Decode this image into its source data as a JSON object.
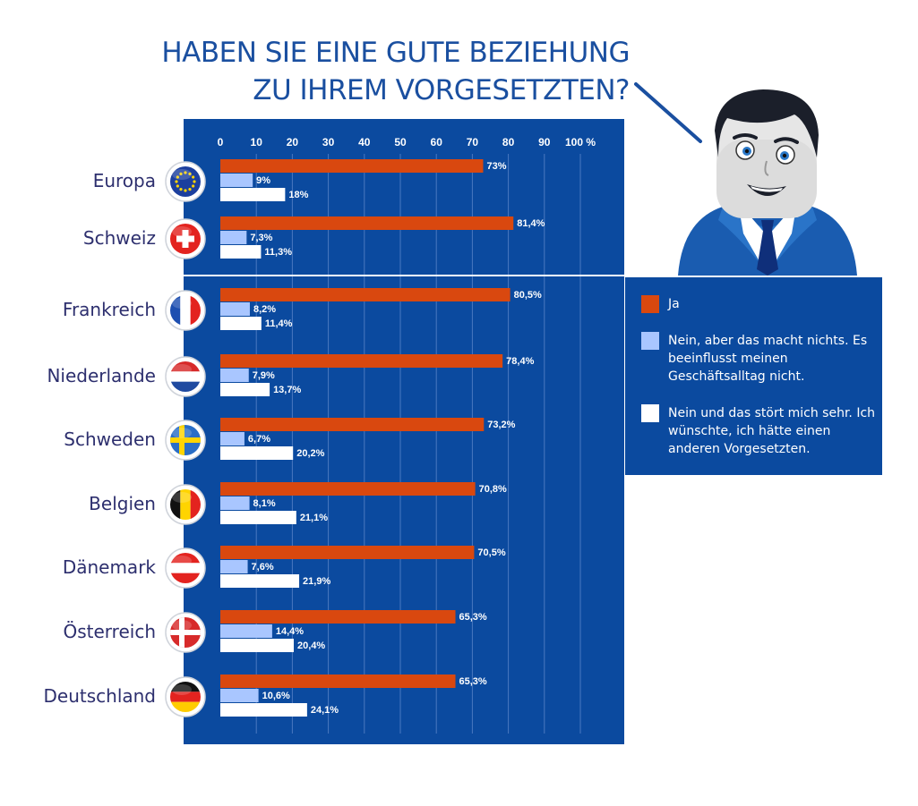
{
  "title": {
    "line1": "HABEN SIE EINE GUTE BEZIEHUNG",
    "line2": "ZU IHREM VORGESETZTEN?"
  },
  "colors": {
    "ja": "#d9480f",
    "nein_nichts": "#a9c6ff",
    "nein_stoert": "#ffffff",
    "panel": "#0b4a9f",
    "title": "#1a4fa0"
  },
  "legend": [
    {
      "label": "Ja",
      "color": "#d9480f"
    },
    {
      "label": "Nein, aber das macht nichts. Es beeinflusst meinen Geschäftsalltag nicht.",
      "color": "#a9c6ff"
    },
    {
      "label": "Nein und das stört mich sehr. Ich wünschte, ich hätte einen anderen Vorgesetzten.",
      "color": "#ffffff"
    }
  ],
  "chart_data": {
    "type": "bar",
    "orientation": "horizontal",
    "title": "HABEN SIE EINE GUTE BEZIEHUNG ZU IHREM VORGESETZTEN?",
    "xlim": [
      0,
      100
    ],
    "x_ticks": [
      "0",
      "10",
      "20",
      "30",
      "40",
      "50",
      "60",
      "70",
      "80",
      "90",
      "100 %"
    ],
    "categories": [
      "Europa",
      "Schweiz",
      "Frankreich",
      "Niederlande",
      "Schweden",
      "Belgien",
      "Dänemark",
      "Österreich",
      "Deutschland"
    ],
    "flags": [
      "eu-flag-icon",
      "swiss-flag-icon",
      "french-flag-icon",
      "dutch-flag-icon",
      "swedish-flag-icon",
      "belgian-flag-icon",
      "austrian-flag-icon",
      "danish-flag-icon",
      "german-flag-icon"
    ],
    "series": [
      {
        "name": "Ja",
        "values": [
          73,
          81.4,
          80.5,
          78.4,
          73.2,
          70.8,
          70.5,
          65.3,
          65.3
        ],
        "labels": [
          "73%",
          "81,4%",
          "80,5%",
          "78,4%",
          "73,2%",
          "70,8%",
          "70,5%",
          "65,3%",
          "65,3%"
        ]
      },
      {
        "name": "Nein, aber das macht nichts. Es beeinflusst meinen Geschäftsalltag nicht.",
        "values": [
          9,
          7.3,
          8.2,
          7.9,
          6.7,
          8.1,
          7.6,
          14.4,
          10.6
        ],
        "labels": [
          "9%",
          "7,3%",
          "8,2%",
          "7,9%",
          "6,7%",
          "8,1%",
          "7,6%",
          "14,4%",
          "10,6%"
        ]
      },
      {
        "name": "Nein und das stört mich sehr. Ich wünschte, ich hätte einen anderen Vorgesetzten.",
        "values": [
          18,
          11.3,
          11.4,
          13.7,
          20.2,
          21.1,
          21.9,
          20.4,
          24.1
        ],
        "labels": [
          "18%",
          "11,3%",
          "11,4%",
          "13,7%",
          "20,2%",
          "21,1%",
          "21,9%",
          "20,4%",
          "24,1%"
        ]
      }
    ],
    "grid": true,
    "legend_position": "right"
  }
}
